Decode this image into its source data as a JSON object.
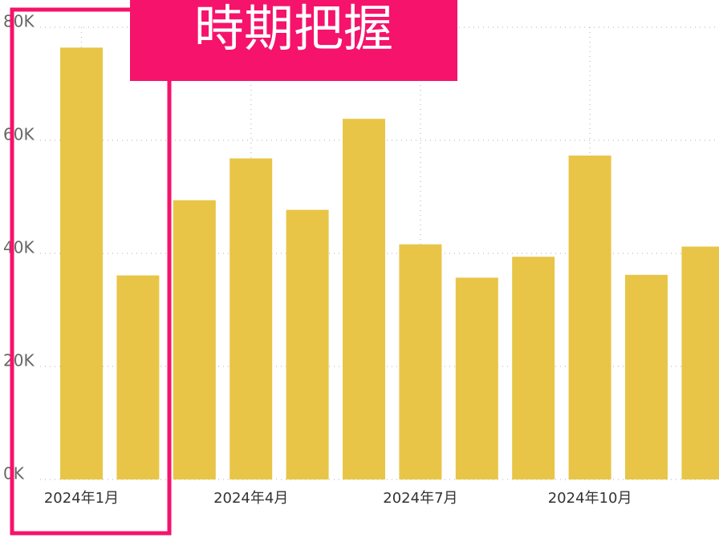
{
  "chart_data": {
    "type": "bar",
    "annotation": "時期把握",
    "categories": [
      "2024年1月",
      null,
      null,
      "2024年4月",
      null,
      null,
      "2024年7月",
      null,
      null,
      "2024年10月",
      null,
      null
    ],
    "values": [
      76400,
      36100,
      49400,
      56800,
      47700,
      63800,
      41600,
      35700,
      39400,
      57300,
      36200,
      41200
    ],
    "color": "#e8c547",
    "ylim": [
      0,
      80000
    ],
    "yticks": [
      {
        "value": 0,
        "label": "0K"
      },
      {
        "value": 20000,
        "label": "20K"
      },
      {
        "value": 40000,
        "label": "40K"
      },
      {
        "value": 60000,
        "label": "60K"
      },
      {
        "value": 80000,
        "label": "80K"
      }
    ],
    "grid": true
  }
}
